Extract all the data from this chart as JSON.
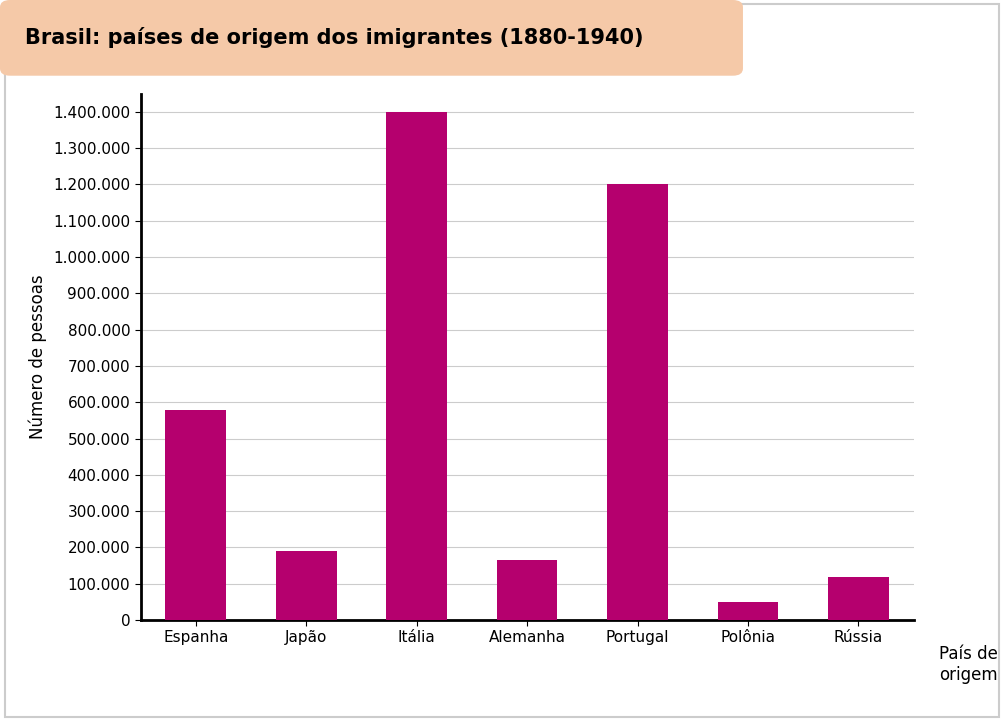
{
  "title": "Brasil: países de origem dos imigrantes (1880-1940)",
  "categories": [
    "Espanha",
    "Japão",
    "Itália",
    "Alemanha",
    "Portugal",
    "Polônia",
    "Rússia"
  ],
  "values": [
    580000,
    190000,
    1400000,
    165000,
    1200000,
    50000,
    120000
  ],
  "bar_color": "#b5006e",
  "ylabel": "Número de pessoas",
  "xlabel_line1": "País de",
  "xlabel_line2": "origem",
  "yticks": [
    0,
    100000,
    200000,
    300000,
    400000,
    500000,
    600000,
    700000,
    800000,
    900000,
    1000000,
    1100000,
    1200000,
    1300000,
    1400000
  ],
  "ylim": [
    0,
    1450000
  ],
  "title_bg_color": "#f5c9a8",
  "outer_bg_color": "#ffffff",
  "inner_bg_color": "#ffffff",
  "chart_border_color": "#cccccc",
  "title_fontsize": 15,
  "axis_label_fontsize": 12,
  "tick_fontsize": 11,
  "grid_color": "#cccccc"
}
